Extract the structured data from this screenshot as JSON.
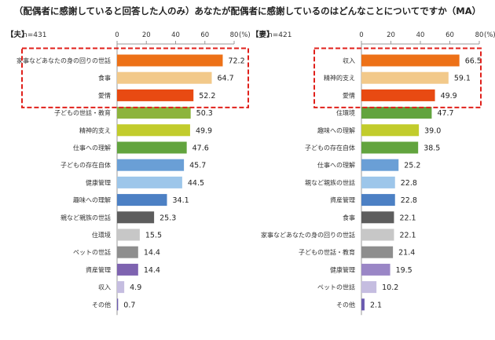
{
  "title": "（配偶者に感謝していると回答した人のみ）あなたが配偶者に感謝しているのはどんなことについてですか（MA）",
  "unit": "(%)",
  "chart_data": [
    {
      "type": "bar",
      "orientation": "horizontal",
      "label": "【夫】",
      "n": "n=431",
      "xlim": [
        0,
        80
      ],
      "ticks": [
        0,
        20,
        40,
        60,
        80
      ],
      "highlighted_top": 3,
      "categories": [
        "家事などあなたの身の回りの世話",
        "食事",
        "愛情",
        "子どもの世話・教育",
        "精神的支え",
        "仕事への理解",
        "子どもの存在自体",
        "健康管理",
        "趣味への理解",
        "親など親族の世話",
        "住環境",
        "ペットの世話",
        "資産管理",
        "収入",
        "その他"
      ],
      "values": [
        72.2,
        64.7,
        52.2,
        50.3,
        49.9,
        47.6,
        45.7,
        44.5,
        34.1,
        25.3,
        15.5,
        14.4,
        14.4,
        4.9,
        0.7
      ],
      "colors": [
        "#ED7117",
        "#F2C98A",
        "#E84A12",
        "#8DB43D",
        "#C2CC2C",
        "#62A43E",
        "#6A9FD6",
        "#9DC6EA",
        "#4C80C4",
        "#5D5D5D",
        "#C7C7C7",
        "#8E8E8E",
        "#7E63B0",
        "#C5BDE0",
        "#6A5AB0"
      ]
    },
    {
      "type": "bar",
      "orientation": "horizontal",
      "label": "【妻】",
      "n": "n=421",
      "xlim": [
        0,
        80
      ],
      "ticks": [
        0,
        20,
        40,
        60,
        80
      ],
      "highlighted_top": 3,
      "categories": [
        "収入",
        "精神的支え",
        "愛情",
        "住環境",
        "趣味への理解",
        "子どもの存在自体",
        "仕事への理解",
        "親など親族の世話",
        "資産管理",
        "食事",
        "家事などあなたの身の回りの世話",
        "子どもの世話・教育",
        "健康管理",
        "ペットの世話",
        "その他"
      ],
      "values": [
        66.5,
        59.1,
        49.9,
        47.7,
        39.0,
        38.5,
        25.2,
        22.8,
        22.8,
        22.1,
        22.1,
        21.4,
        19.5,
        10.2,
        2.1
      ],
      "colors": [
        "#ED7117",
        "#F2C98A",
        "#E84A12",
        "#62A43E",
        "#C2CC2C",
        "#62A43E",
        "#6A9FD6",
        "#9DC6EA",
        "#4C80C4",
        "#5D5D5D",
        "#C7C7C7",
        "#8E8E8E",
        "#9A86C6",
        "#C5BDE0",
        "#6A5AB0"
      ]
    }
  ]
}
